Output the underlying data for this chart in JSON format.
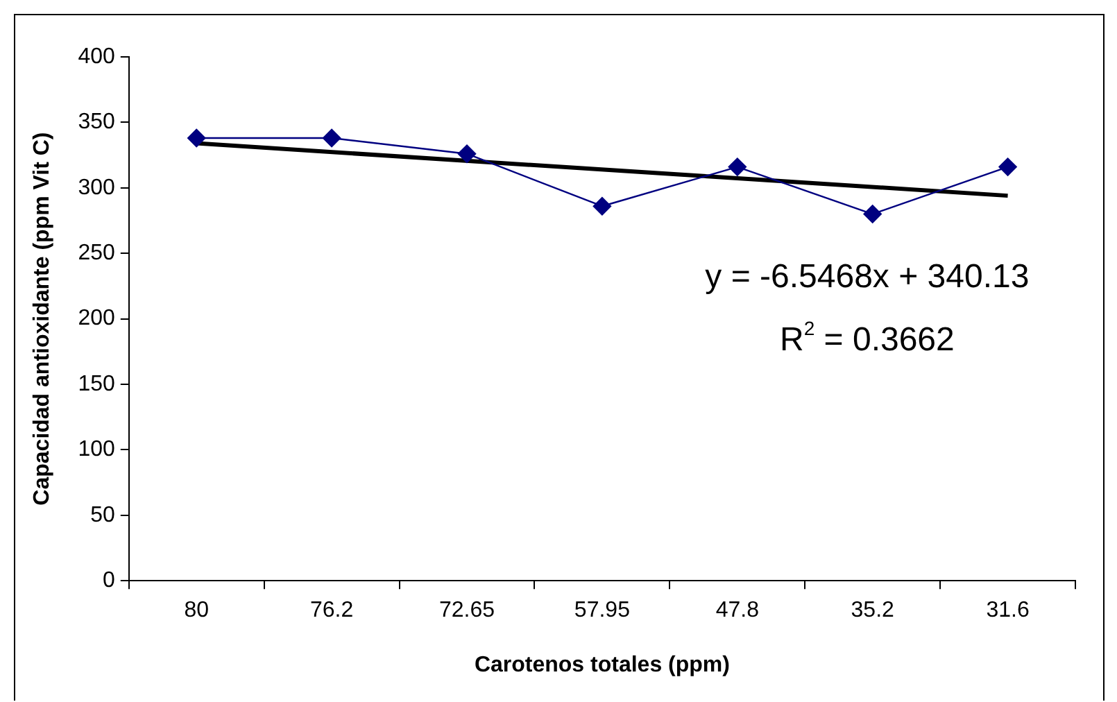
{
  "chart_data": {
    "type": "line",
    "xlabel": "Carotenos totales (ppm)",
    "ylabel": "Capacidad antioxidante (ppm Vit C)",
    "categories": [
      "80",
      "76.2",
      "72.65",
      "57.95",
      "47.8",
      "35.2",
      "31.6"
    ],
    "series": [
      {
        "color": "#000080",
        "values": [
          338,
          338,
          326,
          286,
          316,
          280,
          316
        ]
      },
      {
        "type": "line",
        "color": "#000000",
        "marker": "none",
        "x": [
          "80",
          "31.6"
        ],
        "values": [
          334,
          294
        ]
      }
    ],
    "ylim": [
      0,
      400
    ],
    "yticks": [
      0,
      50,
      100,
      150,
      200,
      250,
      300,
      350,
      400
    ],
    "grid": false,
    "legend": false,
    "marker": "diamond",
    "line_style": "solid",
    "annotations": [
      "y = -6.5468x + 340.13",
      "R$^{2}$ = 0.3662"
    ]
  }
}
